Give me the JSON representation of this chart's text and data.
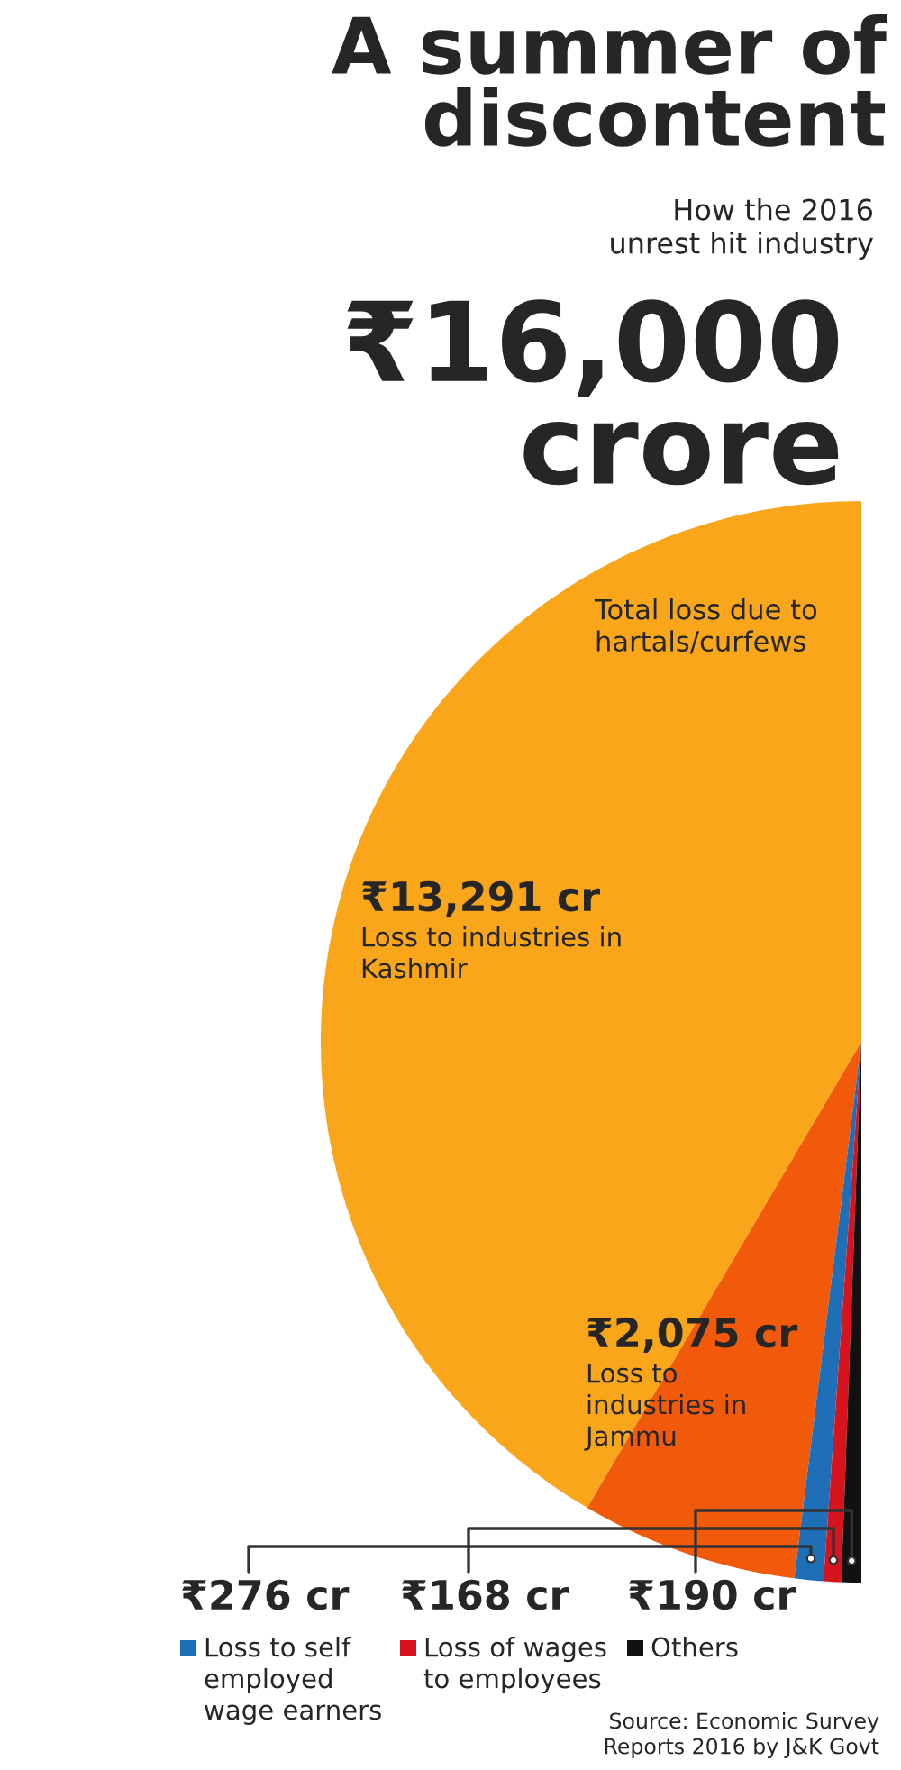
{
  "chart_data": {
    "type": "pie",
    "title": "A summer of\ndiscontent",
    "subtitle": "How the 2016\nunrest hit industry",
    "categories": [
      "Loss to industries in\nKashmir",
      "Loss to\nindustries in\nJammu",
      "Loss to self\nemployed\nwage earners",
      "Loss of wages\nto employees",
      "Others"
    ],
    "values": [
      13291,
      2075,
      276,
      168,
      190
    ],
    "value_labels": [
      "₹13,291 cr",
      "₹2,075 cr",
      "₹276 cr",
      "₹168 cr",
      "₹190 cr"
    ],
    "colors": [
      "#f9a61b",
      "#f05a0a",
      "#1f6fb8",
      "#d7141e",
      "#111111"
    ],
    "annotations": [
      "₹16,000\ncrore",
      "Total loss due to\nhartals/curfews",
      "Source: Economic Survey\nReports 2016 by J&K Govt"
    ],
    "legend": "bottom"
  }
}
